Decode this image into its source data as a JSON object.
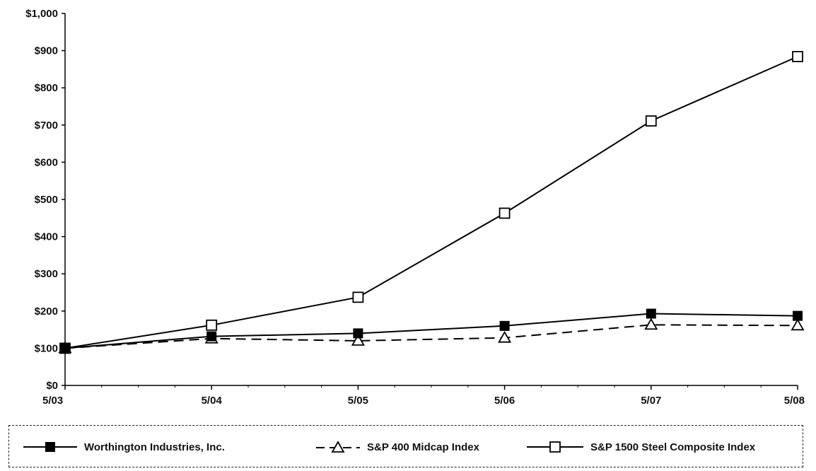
{
  "chart_data": {
    "type": "line",
    "categories": [
      "5/03",
      "5/04",
      "5/05",
      "5/06",
      "5/07",
      "5/08"
    ],
    "y_ticks": [
      "$0",
      "$100",
      "$200",
      "$300",
      "$400",
      "$500",
      "$600",
      "$700",
      "$800",
      "$900",
      "$1,000"
    ],
    "ylim": [
      0,
      1000
    ],
    "grid": false,
    "legend_position": "bottom",
    "series": [
      {
        "name": "Worthington Industries, Inc.",
        "values": [
          100,
          132,
          140,
          160,
          193,
          187
        ],
        "marker": "filled-square",
        "line": "solid",
        "color": "#000000"
      },
      {
        "name": "S&P 400 Midcap Index",
        "values": [
          100,
          126,
          120,
          128,
          163,
          161
        ],
        "marker": "open-triangle",
        "line": "dashed",
        "color": "#000000"
      },
      {
        "name": "S&P 1500 Steel Composite Index",
        "values": [
          100,
          162,
          237,
          463,
          711,
          884
        ],
        "marker": "open-square",
        "line": "solid",
        "color": "#000000"
      }
    ]
  }
}
